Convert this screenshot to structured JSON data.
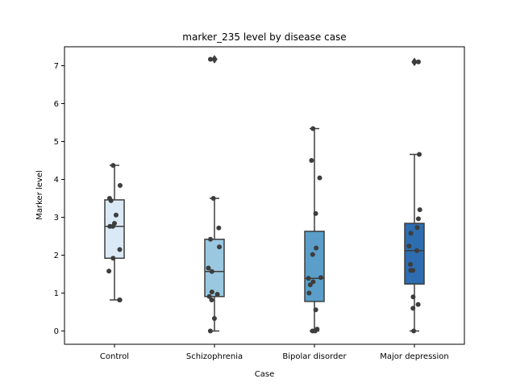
{
  "chart_data": {
    "type": "box",
    "title": "marker_235 level by disease case",
    "xlabel": "Case",
    "ylabel": "Marker level",
    "ylim": [
      -0.35,
      7.5
    ],
    "yticks": [
      0,
      1,
      2,
      3,
      4,
      5,
      6,
      7
    ],
    "categories": [
      "Control",
      "Schizophrenia",
      "Bipolar disorder",
      "Major depression"
    ],
    "colors": [
      "#dbe9f6",
      "#9ac8e0",
      "#5a9ec9",
      "#2e6daf"
    ],
    "boxes": [
      {
        "q1": 1.92,
        "median": 2.76,
        "q3": 3.46,
        "whisker_low": 0.82,
        "whisker_high": 4.37,
        "outliers": []
      },
      {
        "q1": 0.91,
        "median": 1.57,
        "q3": 2.42,
        "whisker_low": 0.0,
        "whisker_high": 3.5,
        "outliers": [
          7.17
        ]
      },
      {
        "q1": 0.78,
        "median": 1.39,
        "q3": 2.63,
        "whisker_low": 0.0,
        "whisker_high": 5.34,
        "outliers": []
      },
      {
        "q1": 1.24,
        "median": 2.12,
        "q3": 2.84,
        "whisker_low": 0.0,
        "whisker_high": 4.66,
        "outliers": [
          7.1
        ]
      }
    ],
    "points": [
      [
        0.82,
        0.82,
        1.58,
        1.92,
        2.15,
        2.76,
        2.76,
        2.84,
        3.06,
        3.44,
        3.5,
        3.84,
        4.37
      ],
      [
        0.0,
        0.33,
        0.82,
        0.91,
        0.97,
        1.03,
        1.57,
        1.66,
        2.22,
        2.42,
        2.72,
        3.5,
        7.17
      ],
      [
        0.0,
        0.0,
        0.05,
        0.56,
        1.0,
        1.22,
        1.3,
        1.39,
        1.41,
        2.02,
        2.19,
        3.1,
        4.04,
        4.5,
        5.34
      ],
      [
        0.0,
        0.6,
        0.7,
        0.9,
        1.6,
        1.6,
        1.76,
        2.12,
        2.24,
        2.58,
        2.73,
        2.96,
        3.2,
        4.66,
        7.1
      ]
    ]
  }
}
